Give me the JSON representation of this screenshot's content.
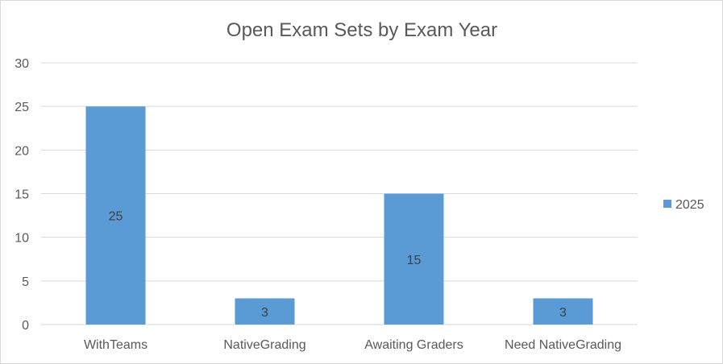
{
  "chart_data": {
    "type": "bar",
    "title": "Open Exam Sets by Exam Year",
    "xlabel": "",
    "ylabel": "",
    "categories": [
      "WithTeams",
      "NativeGrading",
      "Awaiting Graders",
      "Need NativeGrading"
    ],
    "series": [
      {
        "name": "2025",
        "values": [
          25,
          3,
          15,
          3
        ],
        "color": "#5b9bd5"
      }
    ],
    "ylim": [
      0,
      30
    ],
    "yticks": [
      0,
      5,
      10,
      15,
      20,
      25,
      30
    ],
    "grid": true,
    "legend": "right",
    "data_labels": true
  }
}
